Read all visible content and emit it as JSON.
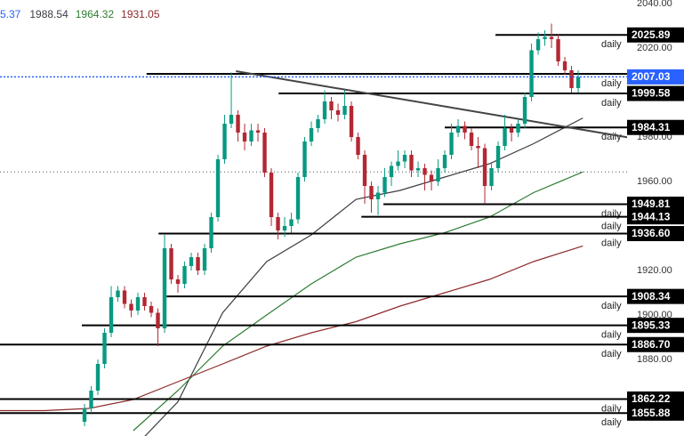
{
  "chart_data": {
    "type": "candlestick",
    "header_partial": "5.37",
    "header_partial_color": "#2962ff",
    "xlim": [
      -12.67,
      89.86
    ],
    "ylim": [
      1845.6,
      2041.6
    ],
    "yticks": [
      {
        "value": 1880,
        "label": "1880.00"
      },
      {
        "value": 1900,
        "label": "1900.00"
      },
      {
        "value": 1920,
        "label": "1920.00"
      },
      {
        "value": 1960,
        "label": "1960.00"
      },
      {
        "value": 1980,
        "label": "1980.00"
      },
      {
        "value": 2020,
        "label": "2020.00"
      },
      {
        "value": 2040,
        "label": "2040.00"
      }
    ],
    "up_color": "#089981",
    "down_color": "#b22833",
    "price_color": "#2962ff",
    "open": [
      1852,
      1858,
      1866,
      1878,
      1892,
      1908,
      1911,
      1905,
      1902,
      1908,
      1904,
      1901,
      1894,
      1930,
      1916,
      1914,
      1922,
      1926,
      1920,
      1930,
      1944,
      1970,
      1986,
      1990,
      1982,
      1978,
      1983,
      1982,
      1964,
      1944,
      1938,
      1940,
      1943,
      1962,
      1978,
      1984,
      1988,
      1996,
      1992,
      1990,
      1994,
      1980,
      1972,
      1958,
      1952,
      1955,
      1962,
      1967,
      1969,
      1972,
      1965,
      1966,
      1963,
      1960,
      1966,
      1972,
      1982,
      1985,
      1982,
      1976,
      1975,
      1958,
      1966,
      1976,
      1984,
      1982,
      1986,
      1998,
      2019,
      2024,
      2025,
      2024,
      2014,
      2010,
      2002
    ],
    "high": [
      1860,
      1868,
      1880,
      1894,
      1913,
      1913,
      1913,
      1907,
      1910,
      1910,
      1906,
      1903,
      1936,
      1932,
      1918,
      1924,
      1928,
      1928,
      1932,
      1946,
      1972,
      1990,
      2009,
      1992,
      1986,
      1986,
      1986,
      1984,
      1966,
      1946,
      1944,
      1946,
      1964,
      1980,
      1987,
      1990,
      2001,
      1998,
      1995,
      2001,
      1996,
      1982,
      1974,
      1960,
      1958,
      1966,
      1969,
      1974,
      1974,
      1974,
      1969,
      1968,
      1965,
      1970,
      1974,
      1986,
      1988,
      1987,
      1984,
      1980,
      1977,
      1968,
      1978,
      1990,
      1986,
      1988,
      2000,
      2022,
      2027,
      2028,
      2031,
      2026,
      2016,
      2012,
      2010
    ],
    "low": [
      1850,
      1856,
      1864,
      1876,
      1890,
      1906,
      1903,
      1899,
      1900,
      1902,
      1899,
      1886,
      1892,
      1914,
      1910,
      1912,
      1920,
      1918,
      1918,
      1928,
      1942,
      1968,
      1984,
      1978,
      1974,
      1976,
      1978,
      1962,
      1940,
      1934,
      1935,
      1937,
      1941,
      1960,
      1976,
      1982,
      1986,
      1988,
      1987,
      1988,
      1978,
      1970,
      1950,
      1946,
      1945,
      1953,
      1958,
      1965,
      1966,
      1962,
      1962,
      1956,
      1956,
      1958,
      1964,
      1970,
      1980,
      1979,
      1974,
      1966,
      1950,
      1956,
      1964,
      1974,
      1978,
      1980,
      1984,
      1996,
      2017,
      2021,
      2020,
      2012,
      2008,
      2000,
      2000
    ],
    "close": [
      1858,
      1866,
      1878,
      1892,
      1908,
      1911,
      1905,
      1902,
      1908,
      1904,
      1901,
      1894,
      1930,
      1916,
      1914,
      1922,
      1926,
      1920,
      1930,
      1944,
      1970,
      1986,
      1990,
      1982,
      1978,
      1983,
      1982,
      1964,
      1944,
      1938,
      1940,
      1943,
      1962,
      1978,
      1984,
      1988,
      1996,
      1992,
      1990,
      1994,
      1980,
      1972,
      1958,
      1952,
      1955,
      1962,
      1967,
      1969,
      1972,
      1965,
      1966,
      1963,
      1960,
      1966,
      1972,
      1982,
      1985,
      1982,
      1976,
      1975,
      1958,
      1966,
      1976,
      1984,
      1982,
      1986,
      1998,
      2019,
      2024,
      2025,
      2024,
      2014,
      2010,
      2002,
      2007.03
    ],
    "series": [
      {
        "color": "#3c3c44",
        "x": [
          -12.7,
          -6,
          0.7,
          7.3,
          14,
          20.7,
          27.3,
          34,
          40.7,
          47.3,
          54,
          60.7,
          67.3,
          74.7
        ],
        "values": [
          null,
          null,
          null,
          1840,
          1861,
          1901,
          1924,
          1936,
          1952,
          1956,
          1962,
          1968,
          1977,
          1988.54
        ]
      },
      {
        "color": "#2e7d32",
        "x": [
          -12.7,
          -6,
          0.7,
          7.3,
          14,
          20.7,
          27.3,
          34,
          40.7,
          47.3,
          54,
          60.7,
          67.3,
          74.7
        ],
        "values": [
          null,
          null,
          null,
          1848,
          1866,
          1886,
          1900,
          1914,
          1926,
          1932,
          1937,
          1944,
          1955,
          1964.32
        ]
      },
      {
        "color": "#8e2a2a",
        "x": [
          -12.7,
          -6,
          0.7,
          7.3,
          14,
          20.7,
          27.3,
          34,
          40.7,
          47.3,
          54,
          60.7,
          67.3,
          74.7
        ],
        "values": [
          1857,
          1857,
          1858,
          1862,
          1870,
          1878,
          1886,
          1892,
          1897,
          1904,
          1910,
          1916,
          1924,
          1931.05
        ]
      }
    ],
    "trendline": {
      "x": [
        22.7,
        81.9
      ],
      "values": [
        2009.6,
        1979.6
      ],
      "color": "#444"
    },
    "level_note": "daily",
    "levels": [
      {
        "value": 2025.89,
        "label": "2025.89",
        "start": 61.6
      },
      {
        "value": 2008.4,
        "start": 9.3
      },
      {
        "value": 1999.58,
        "label": "1999.58",
        "start": 29.1
      },
      {
        "value": 1984.31,
        "label": "1984.31",
        "start": 54
      },
      {
        "value": 1949.81,
        "label": "1949.81",
        "start": 44.8
      },
      {
        "value": 1944.13,
        "label": "1944.13",
        "start": 41.5
      },
      {
        "value": 1936.6,
        "label": "1936.60",
        "start": 11.1
      },
      {
        "value": 1908.34,
        "label": "1908.34",
        "start": 12.3
      },
      {
        "value": 1895.33,
        "label": "1895.33",
        "start": -0.4
      },
      {
        "value": 1886.7,
        "label": "1886.70",
        "start": -12.67
      },
      {
        "value": 1862.22,
        "label": "1862.22",
        "start": -12.67
      },
      {
        "value": 1855.88,
        "label": "1855.88",
        "start": -12.67
      }
    ]
  }
}
